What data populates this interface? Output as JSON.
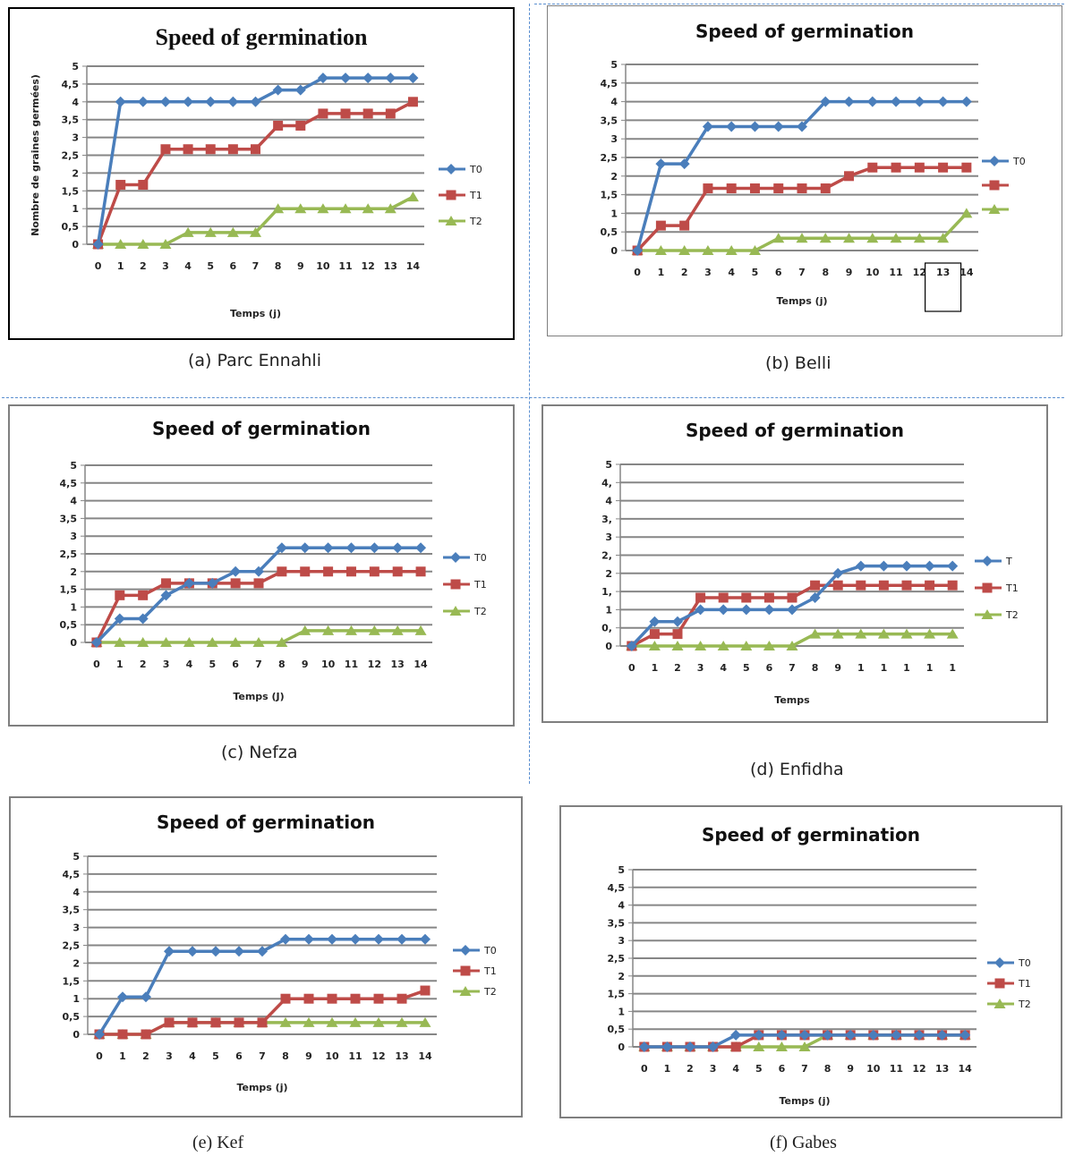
{
  "colors": {
    "T0": "#4a7ebb",
    "T1": "#be4b48",
    "T2": "#98b954",
    "grid": "#868686",
    "frame": "#7f7f7f"
  },
  "chart_data": [
    {
      "type": "line",
      "title": "Speed of  germination",
      "xlabel": "Temps (j)",
      "ylabel": "Nombre de graines germées)",
      "caption": "(a) Parc Ennahli",
      "x": [
        "0",
        "1",
        "2",
        "3",
        "4",
        "5",
        "6",
        "7",
        "8",
        "9",
        "10",
        "11",
        "12",
        "13",
        "14"
      ],
      "y_ticks": [
        "0",
        "0,5",
        "1",
        "1,5",
        "2",
        "2,5",
        "3",
        "3,5",
        "4",
        "4,5",
        "5"
      ],
      "ylim": [
        0,
        5
      ],
      "legend": "right",
      "series": [
        {
          "name": "T0",
          "values": [
            0,
            4,
            4,
            4,
            4,
            4,
            4,
            4,
            4.33,
            4.33,
            4.67,
            4.67,
            4.67,
            4.67,
            4.67
          ]
        },
        {
          "name": "T1",
          "values": [
            0,
            1.67,
            1.67,
            2.67,
            2.67,
            2.67,
            2.67,
            2.67,
            3.33,
            3.33,
            3.67,
            3.67,
            3.67,
            3.67,
            4
          ]
        },
        {
          "name": "T2",
          "values": [
            0,
            0,
            0,
            0,
            0.33,
            0.33,
            0.33,
            0.33,
            1,
            1,
            1,
            1,
            1,
            1,
            1.33
          ]
        }
      ]
    },
    {
      "type": "line",
      "title": "Speed of germination",
      "xlabel": "Temps (j)",
      "ylabel": "",
      "caption": "(b) Belli",
      "x": [
        "0",
        "1",
        "2",
        "3",
        "4",
        "5",
        "6",
        "7",
        "8",
        "9",
        "10",
        "11",
        "12",
        "13",
        "14"
      ],
      "y_ticks": [
        "0",
        "0,5",
        "1",
        "1,5",
        "2",
        "2,5",
        "3",
        "3,5",
        "4",
        "4,5",
        "5"
      ],
      "ylim": [
        0,
        5
      ],
      "legend": "right",
      "series": [
        {
          "name": "T0",
          "values": [
            0,
            2.33,
            2.33,
            3.33,
            3.33,
            3.33,
            3.33,
            3.33,
            4,
            4,
            4,
            4,
            4,
            4,
            4
          ]
        },
        {
          "name": "",
          "values": [
            0,
            0.67,
            0.67,
            1.67,
            1.67,
            1.67,
            1.67,
            1.67,
            1.67,
            2,
            2.23,
            2.23,
            2.23,
            2.23,
            2.23
          ]
        },
        {
          "name": "",
          "values": [
            0,
            0,
            0,
            0,
            0,
            0,
            0.33,
            0.33,
            0.33,
            0.33,
            0.33,
            0.33,
            0.33,
            0.33,
            1
          ]
        }
      ]
    },
    {
      "type": "line",
      "title": "Speed of germination",
      "xlabel": "Temps (J)",
      "ylabel": "",
      "caption": "(c) Nefza",
      "x": [
        "0",
        "1",
        "2",
        "3",
        "4",
        "5",
        "6",
        "7",
        "8",
        "9",
        "10",
        "11",
        "12",
        "13",
        "14"
      ],
      "y_ticks": [
        "0",
        "0,5",
        "1",
        "1,5",
        "2",
        "2,5",
        "3",
        "3,5",
        "4",
        "4,5",
        "5"
      ],
      "ylim": [
        0,
        5
      ],
      "legend": "right",
      "series": [
        {
          "name": "T0",
          "values": [
            0,
            0.67,
            0.67,
            1.33,
            1.67,
            1.67,
            2,
            2,
            2.67,
            2.67,
            2.67,
            2.67,
            2.67,
            2.67,
            2.67
          ]
        },
        {
          "name": "T1",
          "values": [
            0,
            1.33,
            1.33,
            1.67,
            1.67,
            1.67,
            1.67,
            1.67,
            2,
            2,
            2,
            2,
            2,
            2,
            2
          ]
        },
        {
          "name": "T2",
          "values": [
            0,
            0,
            0,
            0,
            0,
            0,
            0,
            0,
            0,
            0.33,
            0.33,
            0.33,
            0.33,
            0.33,
            0.33
          ]
        }
      ]
    },
    {
      "type": "line",
      "title": "Speed of germination",
      "xlabel": "Temps",
      "ylabel": "",
      "caption": "(d) Enfidha",
      "x": [
        "0",
        "1",
        "2",
        "3",
        "4",
        "5",
        "6",
        "7",
        "8",
        "9",
        "1",
        "1",
        "1",
        "1",
        "1"
      ],
      "y_ticks": [
        "0",
        "0,",
        "1",
        "1,",
        "2",
        "2,",
        "3",
        "3,",
        "4",
        "4,",
        "5"
      ],
      "ylim": [
        0,
        5
      ],
      "legend": "right",
      "series": [
        {
          "name": "T",
          "values": [
            0,
            0.67,
            0.67,
            1,
            1,
            1,
            1,
            1,
            1.33,
            2,
            2.2,
            2.2,
            2.2,
            2.2,
            2.2
          ]
        },
        {
          "name": "T1",
          "values": [
            0,
            0.33,
            0.33,
            1.33,
            1.33,
            1.33,
            1.33,
            1.33,
            1.67,
            1.67,
            1.67,
            1.67,
            1.67,
            1.67,
            1.67
          ]
        },
        {
          "name": "T2",
          "values": [
            0,
            0,
            0,
            0,
            0,
            0,
            0,
            0,
            0.33,
            0.33,
            0.33,
            0.33,
            0.33,
            0.33,
            0.33
          ]
        }
      ]
    },
    {
      "type": "line",
      "title": "Speed of  germination",
      "xlabel": "Temps (j)",
      "ylabel": "",
      "caption": "(e) Kef",
      "x": [
        "0",
        "1",
        "2",
        "3",
        "4",
        "5",
        "6",
        "7",
        "8",
        "9",
        "10",
        "11",
        "12",
        "13",
        "14"
      ],
      "y_ticks": [
        "0",
        "0,5",
        "1",
        "1,5",
        "2",
        "2,5",
        "3",
        "3,5",
        "4",
        "4,5",
        "5"
      ],
      "ylim": [
        0,
        5
      ],
      "legend": "right",
      "series": [
        {
          "name": "T0",
          "values": [
            0,
            1.05,
            1.05,
            2.33,
            2.33,
            2.33,
            2.33,
            2.33,
            2.67,
            2.67,
            2.67,
            2.67,
            2.67,
            2.67,
            2.67
          ]
        },
        {
          "name": "T1",
          "values": [
            0,
            0,
            0,
            0.33,
            0.33,
            0.33,
            0.33,
            0.33,
            1,
            1,
            1,
            1,
            1,
            1,
            1.23
          ]
        },
        {
          "name": "T2",
          "values": [
            0,
            0,
            0,
            0.33,
            0.33,
            0.33,
            0.33,
            0.33,
            0.33,
            0.33,
            0.33,
            0.33,
            0.33,
            0.33,
            0.33
          ]
        }
      ]
    },
    {
      "type": "line",
      "title": "Speed of germination",
      "xlabel": "Temps (j)",
      "ylabel": "",
      "caption": "(f) Gabes",
      "x": [
        "0",
        "1",
        "2",
        "3",
        "4",
        "5",
        "6",
        "7",
        "8",
        "9",
        "10",
        "11",
        "12",
        "13",
        "14"
      ],
      "y_ticks": [
        "0",
        "0,5",
        "1",
        "1,5",
        "2",
        "2,5",
        "3",
        "3,5",
        "4",
        "4,5",
        "5"
      ],
      "ylim": [
        0,
        5
      ],
      "legend": "right",
      "series": [
        {
          "name": "T0",
          "values": [
            0,
            0,
            0,
            0,
            0.33,
            0.33,
            0.33,
            0.33,
            0.33,
            0.33,
            0.33,
            0.33,
            0.33,
            0.33,
            0.33
          ]
        },
        {
          "name": "T1",
          "values": [
            0,
            0,
            0,
            0,
            0,
            0.33,
            0.33,
            0.33,
            0.33,
            0.33,
            0.33,
            0.33,
            0.33,
            0.33,
            0.33
          ]
        },
        {
          "name": "T2",
          "values": [
            0,
            0,
            0,
            0,
            0,
            0,
            0,
            0,
            0.33,
            0.33,
            0.33,
            0.33,
            0.33,
            0.33,
            0.33
          ]
        }
      ]
    }
  ]
}
